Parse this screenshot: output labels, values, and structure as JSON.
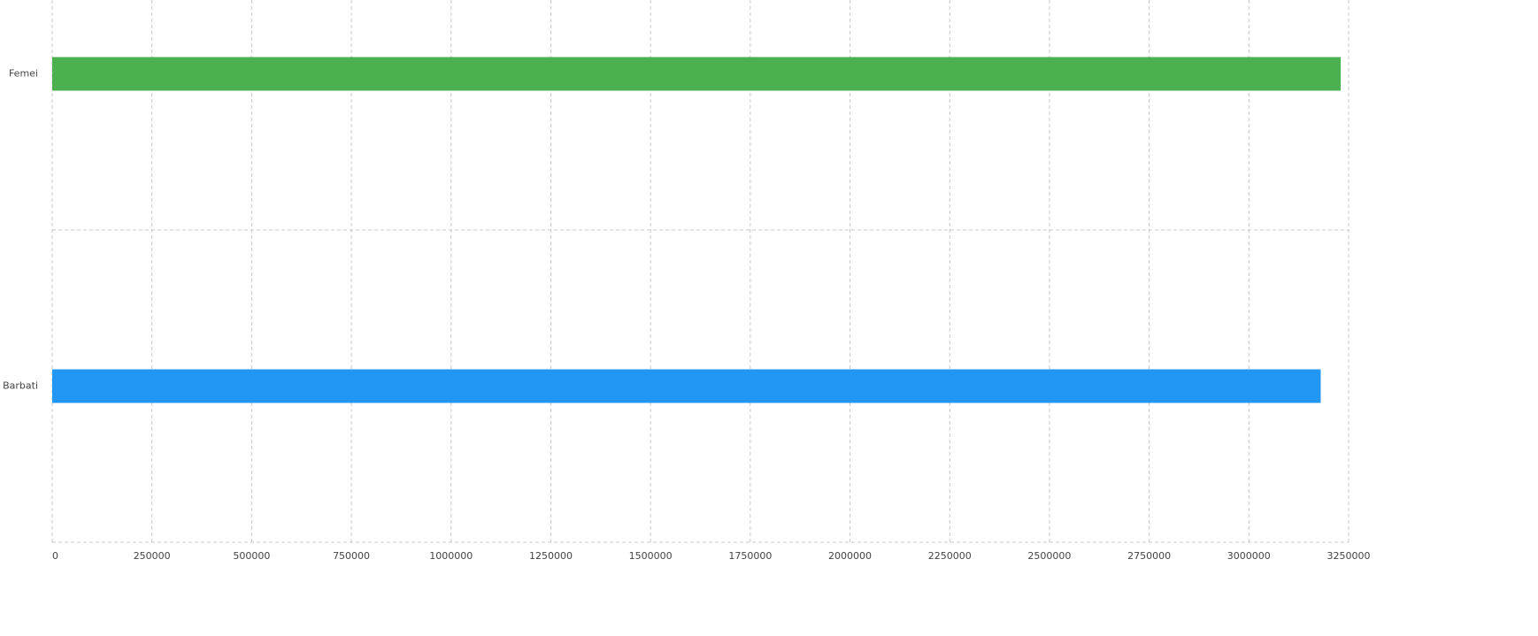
{
  "chart_data": {
    "type": "hbar",
    "categories": [
      "Femei",
      "Barbati"
    ],
    "values": [
      3230000,
      3180000
    ],
    "colors": [
      "#4caf50",
      "#2196f3"
    ],
    "xlim": [
      0,
      3250000
    ],
    "xticks": [
      0,
      250000,
      500000,
      750000,
      1000000,
      1250000,
      1500000,
      1750000,
      2000000,
      2250000,
      2500000,
      2750000,
      3000000,
      3250000
    ],
    "grid": true
  }
}
